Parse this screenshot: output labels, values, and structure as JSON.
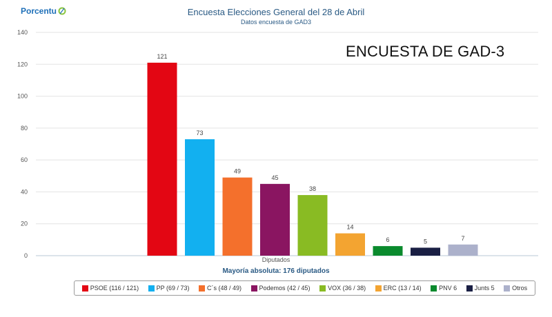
{
  "header": {
    "logo_text": "Porcentu",
    "title": "Encuesta Elecciones General del 28 de Abril",
    "subtitle": "Datos encuesta de GAD3",
    "overlay": "ENCUESTA DE GAD-3"
  },
  "chart_data": {
    "type": "bar",
    "title": "Encuesta Elecciones General del 28 de Abril",
    "subtitle": "Datos encuesta de GAD3",
    "xlabel": "Diputados",
    "ylabel": "",
    "ylim": [
      0,
      140
    ],
    "yticks": [
      0,
      20,
      40,
      60,
      80,
      100,
      120,
      140
    ],
    "grid": true,
    "legend_position": "bottom",
    "categories": [
      "PSOE",
      "PP",
      "C´s",
      "Podemos",
      "VOX",
      "ERC",
      "PNV",
      "Junts",
      "Otros"
    ],
    "values": [
      121,
      73,
      49,
      45,
      38,
      14,
      6,
      5,
      7
    ],
    "data_labels": [
      "121",
      "73",
      "49",
      "45",
      "38",
      "14",
      "6",
      "5",
      "7"
    ],
    "colors": [
      "#e30613",
      "#12b0f0",
      "#f4702c",
      "#8a1561",
      "#89bb23",
      "#f3a431",
      "#0a8a2d",
      "#1a1f44",
      "#acb1cb"
    ],
    "note": "Mayoría absoluta: 176 diputados"
  },
  "legend": [
    {
      "label": "PSOE (116 / 121)",
      "color": "#e30613"
    },
    {
      "label": "PP (69 / 73)",
      "color": "#12b0f0"
    },
    {
      "label": "C´s (48 / 49)",
      "color": "#f4702c"
    },
    {
      "label": "Podemos (42 / 45)",
      "color": "#8a1561"
    },
    {
      "label": "VOX (36 / 38)",
      "color": "#89bb23"
    },
    {
      "label": "ERC (13 / 14)",
      "color": "#f3a431"
    },
    {
      "label": "PNV 6",
      "color": "#0a8a2d"
    },
    {
      "label": "Junts 5",
      "color": "#1a1f44"
    },
    {
      "label": "Otros",
      "color": "#acb1cb"
    }
  ]
}
